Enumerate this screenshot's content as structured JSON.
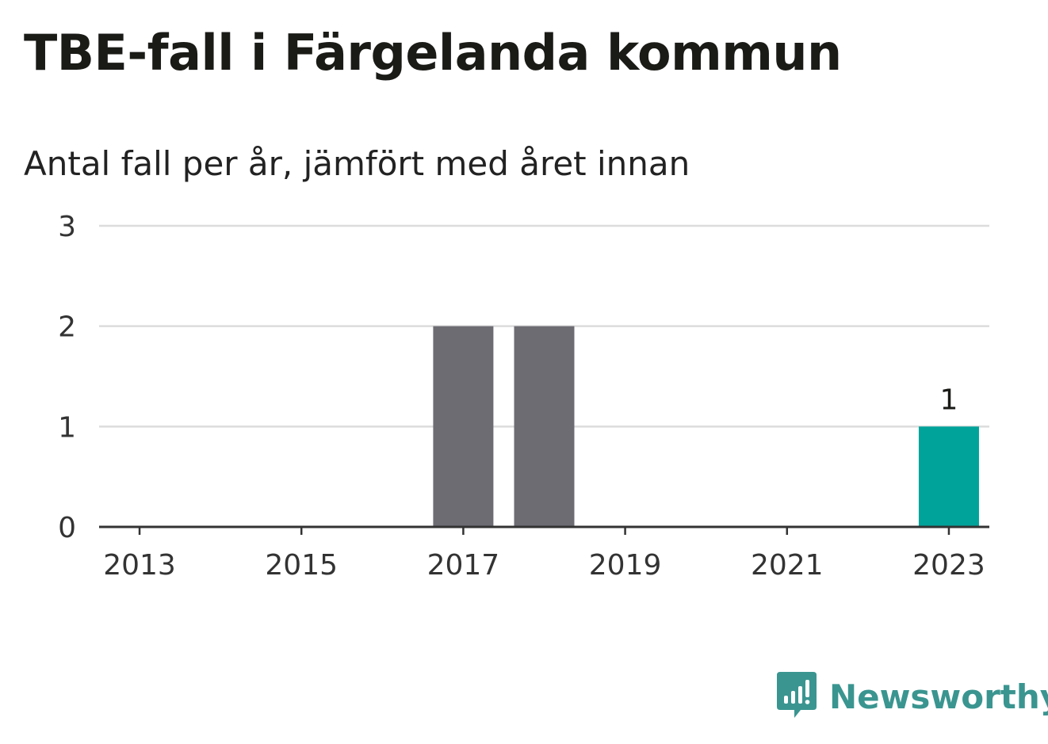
{
  "title": "TBE-fall i Färgelanda kommun",
  "subtitle": "Antal fall per år, jämfört med året innan",
  "brand": {
    "name": "Newsworthy",
    "icon": "newsworthy-logo-icon",
    "color": "#3a9590"
  },
  "colors": {
    "bar": "#6d6c73",
    "highlight": "#00a39a",
    "grid": "#dcdcdc",
    "axis": "#333333",
    "text": "#333333"
  },
  "chart_data": {
    "type": "bar",
    "categories": [
      "2013",
      "2014",
      "2015",
      "2016",
      "2017",
      "2018",
      "2019",
      "2020",
      "2021",
      "2022",
      "2023"
    ],
    "values": [
      0,
      0,
      0,
      0,
      2,
      2,
      0,
      0,
      0,
      0,
      1
    ],
    "highlight_index": 10,
    "x_tick_labels": [
      "2013",
      "2015",
      "2017",
      "2019",
      "2021",
      "2023"
    ],
    "y_ticks": [
      0,
      1,
      2,
      3
    ],
    "ylim": [
      0,
      3
    ],
    "grid": true,
    "data_labels": [
      {
        "category": "2023",
        "label": "1"
      }
    ],
    "xlabel": "",
    "ylabel": ""
  }
}
